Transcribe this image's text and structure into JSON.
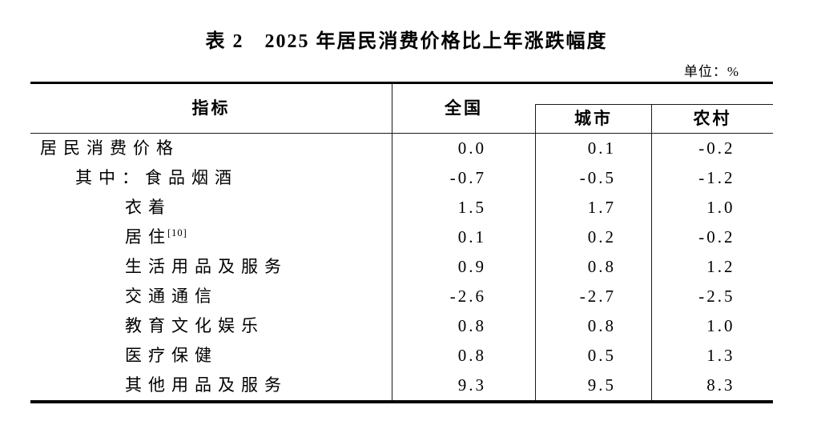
{
  "document": {
    "title": "表 2　2025 年居民消费价格比上年涨跌幅度",
    "unit_label": "单位：%"
  },
  "table": {
    "columns": {
      "indicator": "指标",
      "national": "全国",
      "urban": "城市",
      "rural": "农村"
    },
    "rows": [
      {
        "indicator": "居民消费价格",
        "national": "0.0",
        "urban": "0.1",
        "rural": "-0.2"
      },
      {
        "indicator": "其中：食品烟酒",
        "national": "-0.7",
        "urban": "-0.5",
        "rural": "-1.2"
      },
      {
        "indicator": "衣着",
        "national": "1.5",
        "urban": "1.7",
        "rural": "1.0"
      },
      {
        "indicator": "居住",
        "note_ref": "[10]",
        "national": "0.1",
        "urban": "0.2",
        "rural": "-0.2"
      },
      {
        "indicator": "生活用品及服务",
        "national": "0.9",
        "urban": "0.8",
        "rural": "1.2"
      },
      {
        "indicator": "交通通信",
        "national": "-2.6",
        "urban": "-2.7",
        "rural": "-2.5"
      },
      {
        "indicator": "教育文化娱乐",
        "national": "0.8",
        "urban": "0.8",
        "rural": "1.0"
      },
      {
        "indicator": "医疗保健",
        "national": "0.8",
        "urban": "0.5",
        "rural": "1.3"
      },
      {
        "indicator": "其他用品及服务",
        "national": "9.3",
        "urban": "9.5",
        "rural": "8.3"
      }
    ]
  },
  "chart_data": {
    "type": "table",
    "title": "表 2　2025 年居民消费价格比上年涨跌幅度",
    "unit": "%",
    "columns": [
      "指标",
      "全国",
      "城市",
      "农村"
    ],
    "rows": [
      [
        "居民消费价格",
        0.0,
        0.1,
        -0.2
      ],
      [
        "其中：食品烟酒",
        -0.7,
        -0.5,
        -1.2
      ],
      [
        "衣着",
        1.5,
        1.7,
        1.0
      ],
      [
        "居住[10]",
        0.1,
        0.2,
        -0.2
      ],
      [
        "生活用品及服务",
        0.9,
        0.8,
        1.2
      ],
      [
        "交通通信",
        -2.6,
        -2.7,
        -2.5
      ],
      [
        "教育文化娱乐",
        0.8,
        0.8,
        1.0
      ],
      [
        "医疗保健",
        0.8,
        0.5,
        1.3
      ],
      [
        "其他用品及服务",
        9.3,
        9.5,
        8.3
      ]
    ]
  }
}
